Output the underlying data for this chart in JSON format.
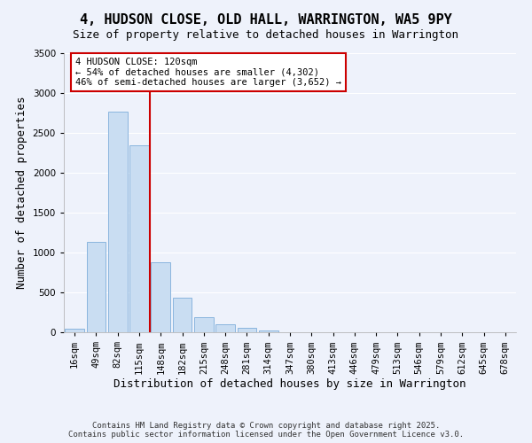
{
  "title": "4, HUDSON CLOSE, OLD HALL, WARRINGTON, WA5 9PY",
  "subtitle": "Size of property relative to detached houses in Warrington",
  "xlabel": "Distribution of detached houses by size in Warrington",
  "ylabel": "Number of detached properties",
  "bar_color": "#c9ddf2",
  "bar_edge_color": "#8ab5de",
  "background_color": "#eef2fb",
  "categories": [
    "16sqm",
    "49sqm",
    "82sqm",
    "115sqm",
    "148sqm",
    "182sqm",
    "215sqm",
    "248sqm",
    "281sqm",
    "314sqm",
    "347sqm",
    "380sqm",
    "413sqm",
    "446sqm",
    "479sqm",
    "513sqm",
    "546sqm",
    "579sqm",
    "612sqm",
    "645sqm",
    "678sqm"
  ],
  "values": [
    50,
    1130,
    2770,
    2340,
    880,
    430,
    185,
    100,
    55,
    20,
    5,
    2,
    1,
    0,
    0,
    0,
    0,
    0,
    0,
    0,
    0
  ],
  "ylim": [
    0,
    3500
  ],
  "yticks": [
    0,
    500,
    1000,
    1500,
    2000,
    2500,
    3000,
    3500
  ],
  "property_label": "4 HUDSON CLOSE: 120sqm",
  "annotation_line1": "← 54% of detached houses are smaller (4,302)",
  "annotation_line2": "46% of semi-detached houses are larger (3,652) →",
  "box_color": "#ffffff",
  "box_edge_color": "#cc0000",
  "vline_color": "#cc0000",
  "footer1": "Contains HM Land Registry data © Crown copyright and database right 2025.",
  "footer2": "Contains public sector information licensed under the Open Government Licence v3.0.",
  "grid_color": "#ffffff",
  "title_fontsize": 11,
  "label_fontsize": 9,
  "tick_fontsize": 7.5,
  "annotation_fontsize": 7.5,
  "footer_fontsize": 6.5,
  "vline_x_index": 3.5
}
